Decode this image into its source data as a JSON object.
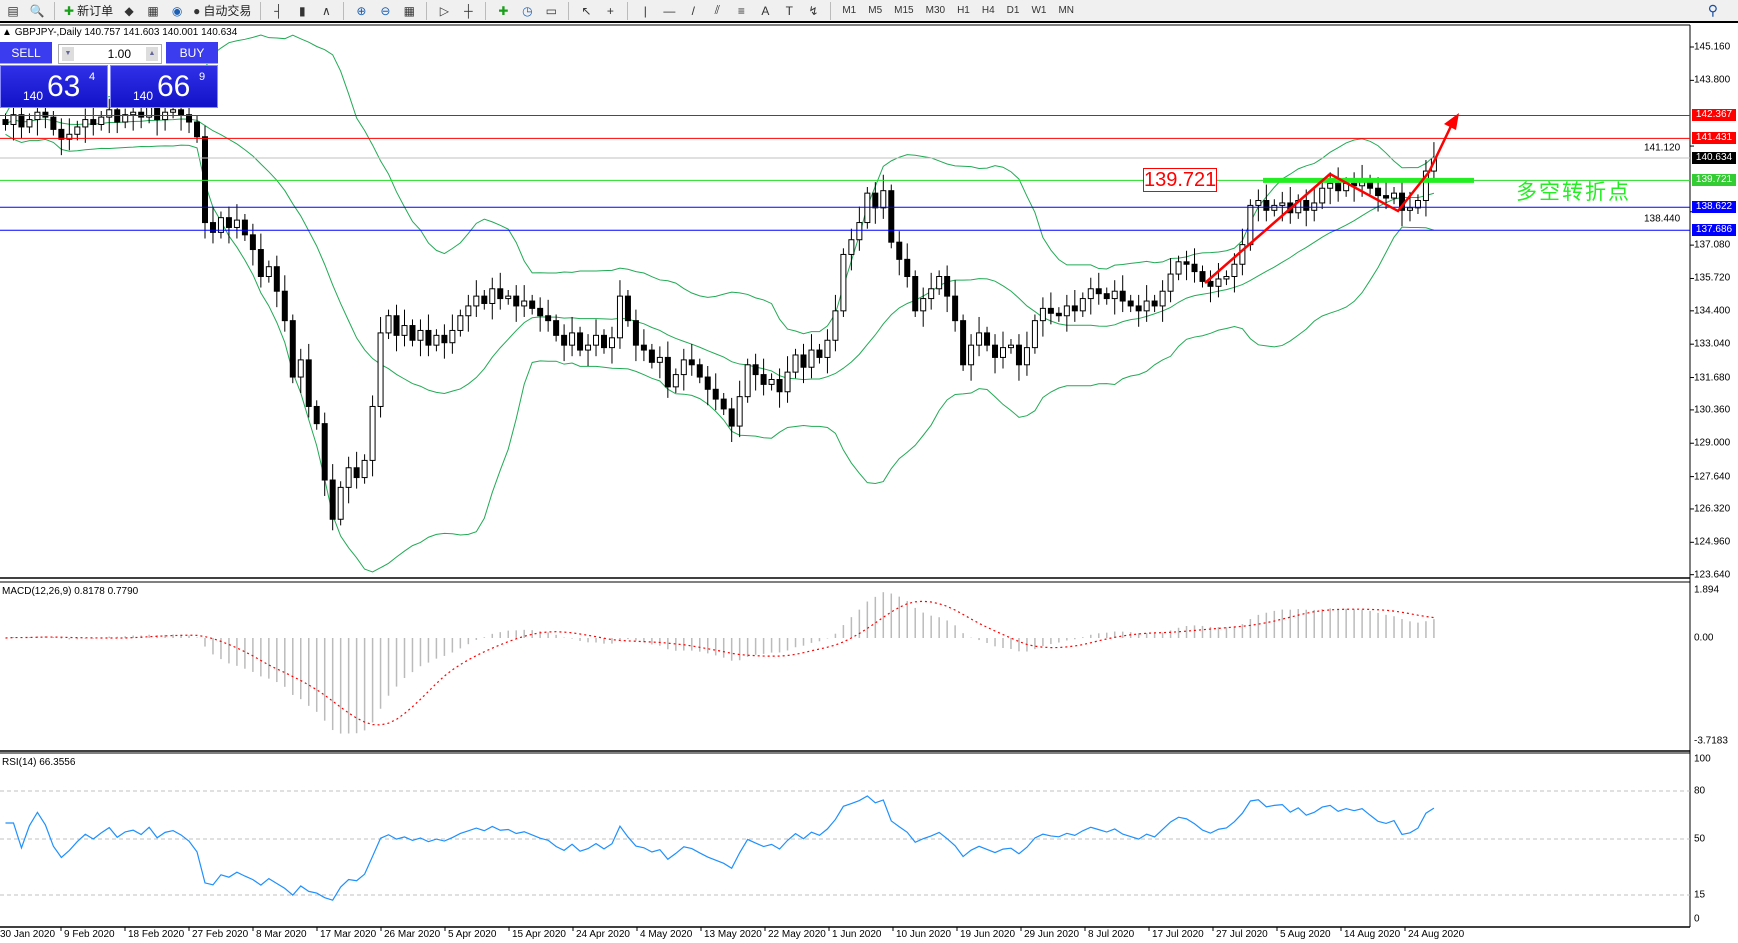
{
  "toolbar": {
    "new_order": "新订单",
    "auto_trading": "自动交易",
    "timeframes": [
      "M1",
      "M5",
      "M15",
      "M30",
      "H1",
      "H4",
      "D1",
      "W1",
      "MN"
    ],
    "icons": [
      "profiles-icon",
      "zoom-icon",
      "new-order-icon",
      "metaeditor-icon",
      "navigator-icon",
      "signals-icon",
      "auto-trading-icon",
      "bar-chart-icon",
      "candlestick-icon",
      "line-chart-icon",
      "zoom-in-icon",
      "zoom-out-icon",
      "tile-windows-icon",
      "autoscroll-icon",
      "chart-shift-icon",
      "indicators-icon",
      "periods-icon",
      "templates-icon",
      "cursor-icon",
      "crosshair-icon",
      "vertical-line-icon",
      "horizontal-line-icon",
      "trendline-icon",
      "equidistant-channel-icon",
      "fibonacci-icon",
      "text-icon",
      "text-label-icon",
      "arrows-icon"
    ]
  },
  "chart": {
    "header": "GBPJPY-,Daily  140.757 141.603 140.001 140.634"
  },
  "trade_panel": {
    "sell": "SELL",
    "buy": "BUY",
    "lot": "1.00",
    "bid": {
      "big": "140",
      "main": "63",
      "pip": "4"
    },
    "ask": {
      "big": "140",
      "main": "66",
      "pip": "9"
    }
  },
  "price_axis": [
    "145.160",
    "143.800",
    "141.120",
    "138.440",
    "137.080",
    "135.720",
    "134.400",
    "133.040",
    "131.680",
    "130.360",
    "129.000",
    "127.640",
    "126.320",
    "124.960",
    "123.640"
  ],
  "levels": [
    {
      "price": 142.367,
      "label": "142.367",
      "color": "#ff0000"
    },
    {
      "price": 141.431,
      "label": "141.431",
      "color": "#ff0000"
    },
    {
      "price": 140.634,
      "label": "140.634",
      "color": "#000000",
      "line": "#c0c0c0"
    },
    {
      "price": 139.721,
      "label": "139.721",
      "color": "#33cc33",
      "line": "#22dd22"
    },
    {
      "price": 138.622,
      "label": "138.622",
      "color": "#0000ff"
    },
    {
      "price": 137.686,
      "label": "137.686",
      "color": "#0000ff"
    }
  ],
  "annotations": {
    "level_box": "139.721",
    "turning_point": "多空转折点",
    "arrow_color": "#ff0000"
  },
  "macd": {
    "label": "MACD(12,26,9) 0.8178 0.7790",
    "axis": [
      "1.894",
      "0.00",
      "-3.7183"
    ]
  },
  "rsi": {
    "label": "RSI(14) 66.3556",
    "axis": [
      "100",
      "80",
      "50",
      "15",
      "0"
    ],
    "levels": [
      80,
      50,
      15
    ],
    "color": "#1e90ff"
  },
  "time_axis": [
    "30 Jan 2020",
    "9 Feb 2020",
    "18 Feb 2020",
    "27 Feb 2020",
    "8 Mar 2020",
    "17 Mar 2020",
    "26 Mar 2020",
    "5 Apr 2020",
    "15 Apr 2020",
    "24 Apr 2020",
    "4 May 2020",
    "13 May 2020",
    "22 May 2020",
    "1 Jun 2020",
    "10 Jun 2020",
    "19 Jun 2020",
    "29 Jun 2020",
    "8 Jul 2020",
    "17 Jul 2020",
    "27 Jul 2020",
    "5 Aug 2020",
    "14 Aug 2020",
    "24 Aug 2020"
  ],
  "chart_data": {
    "type": "candlestick",
    "symbol": "GBPJPY",
    "timeframe": "Daily",
    "ylim": [
      123.5,
      146.0
    ],
    "bands_color": "#22aa55",
    "close": [
      142.0,
      142.4,
      141.9,
      142.2,
      142.5,
      142.3,
      141.8,
      141.4,
      141.6,
      141.9,
      142.2,
      142.0,
      142.3,
      142.6,
      142.1,
      142.4,
      142.5,
      142.3,
      142.7,
      142.2,
      142.5,
      142.6,
      142.4,
      142.1,
      141.5,
      138.0,
      137.6,
      138.2,
      137.8,
      138.1,
      137.5,
      136.9,
      135.8,
      136.2,
      135.2,
      134.0,
      131.7,
      132.4,
      130.5,
      129.8,
      127.5,
      125.9,
      127.2,
      128.0,
      127.6,
      128.3,
      130.5,
      133.5,
      134.2,
      133.4,
      133.8,
      133.2,
      133.6,
      133.0,
      133.4,
      133.1,
      133.6,
      134.2,
      134.6,
      135.0,
      134.7,
      135.3,
      134.9,
      135.0,
      134.6,
      134.8,
      134.5,
      134.2,
      134.0,
      133.4,
      133.0,
      133.5,
      132.8,
      133.0,
      133.4,
      132.9,
      133.3,
      135.0,
      134.0,
      133.0,
      132.8,
      132.3,
      132.5,
      131.3,
      131.8,
      132.4,
      132.2,
      131.7,
      131.2,
      130.8,
      130.4,
      129.7,
      130.9,
      132.2,
      131.8,
      131.4,
      131.6,
      131.1,
      131.9,
      132.6,
      132.1,
      132.8,
      132.5,
      133.2,
      134.4,
      136.7,
      137.3,
      138.0,
      139.2,
      138.6,
      139.3,
      137.2,
      136.5,
      135.8,
      134.4,
      134.9,
      135.3,
      135.8,
      135.0,
      134.0,
      132.2,
      133.0,
      133.5,
      133.0,
      132.5,
      132.9,
      133.0,
      132.2,
      132.9,
      134.0,
      134.5,
      134.3,
      134.2,
      134.6,
      134.4,
      134.9,
      135.3,
      135.1,
      134.9,
      135.2,
      134.8,
      134.6,
      134.4,
      134.8,
      134.6,
      135.2,
      135.9,
      136.4,
      136.3,
      136.0,
      135.6,
      135.4,
      135.7,
      135.8,
      136.3,
      137.1,
      138.7,
      138.9,
      138.5,
      138.7,
      138.8,
      138.4,
      138.9,
      138.5,
      138.8,
      139.4,
      139.6,
      139.3,
      139.6,
      139.5,
      139.7,
      139.4,
      139.1,
      139.0,
      139.2,
      138.5,
      138.6,
      138.9,
      140.1,
      140.63
    ]
  }
}
